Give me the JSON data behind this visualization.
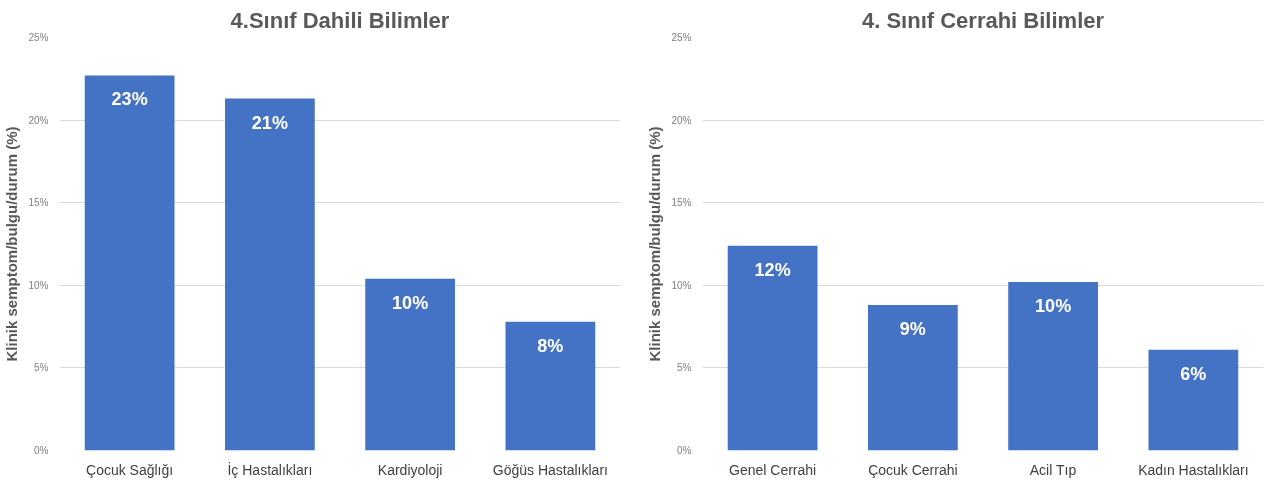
{
  "chart_data": [
    {
      "type": "bar",
      "title": "4.Sınıf Dahili Bilimler",
      "ylabel": "Klinik semptom/bulgu/durum (%)",
      "categories": [
        "Çocuk Sağlığı",
        "İç Hastalıkları",
        "Kardiyoloji",
        "Göğüs Hastalıkları"
      ],
      "values": [
        22.7,
        21.3,
        10.4,
        7.8
      ],
      "value_labels": [
        "23%",
        "21%",
        "10%",
        "8%"
      ],
      "color": "#4472c4",
      "ylim": [
        0,
        25
      ],
      "yticks": [
        {
          "value": 0,
          "label": "0%"
        },
        {
          "value": 5,
          "label": "5%"
        },
        {
          "value": 10,
          "label": "10%"
        },
        {
          "value": 15,
          "label": "15%"
        },
        {
          "value": 20,
          "label": "20%"
        },
        {
          "value": 25,
          "label": "25%"
        }
      ],
      "grid": "y"
    },
    {
      "type": "bar",
      "title": "4. Sınıf Cerrahi Bilimler",
      "ylabel": "Klinik semptom/bulgu/durum (%)",
      "categories": [
        "Genel Cerrahi",
        "Çocuk Cerrahi",
        "Acil Tıp",
        "Kadın Hastalıkları"
      ],
      "values": [
        12.4,
        8.8,
        10.2,
        6.1
      ],
      "value_labels": [
        "12%",
        "9%",
        "10%",
        "6%"
      ],
      "color": "#4472c4",
      "ylim": [
        0,
        25
      ],
      "yticks": [
        {
          "value": 0,
          "label": "0%"
        },
        {
          "value": 5,
          "label": "5%"
        },
        {
          "value": 10,
          "label": "10%"
        },
        {
          "value": 15,
          "label": "15%"
        },
        {
          "value": 20,
          "label": "20%"
        },
        {
          "value": 25,
          "label": "25%"
        }
      ],
      "grid": "y"
    }
  ]
}
